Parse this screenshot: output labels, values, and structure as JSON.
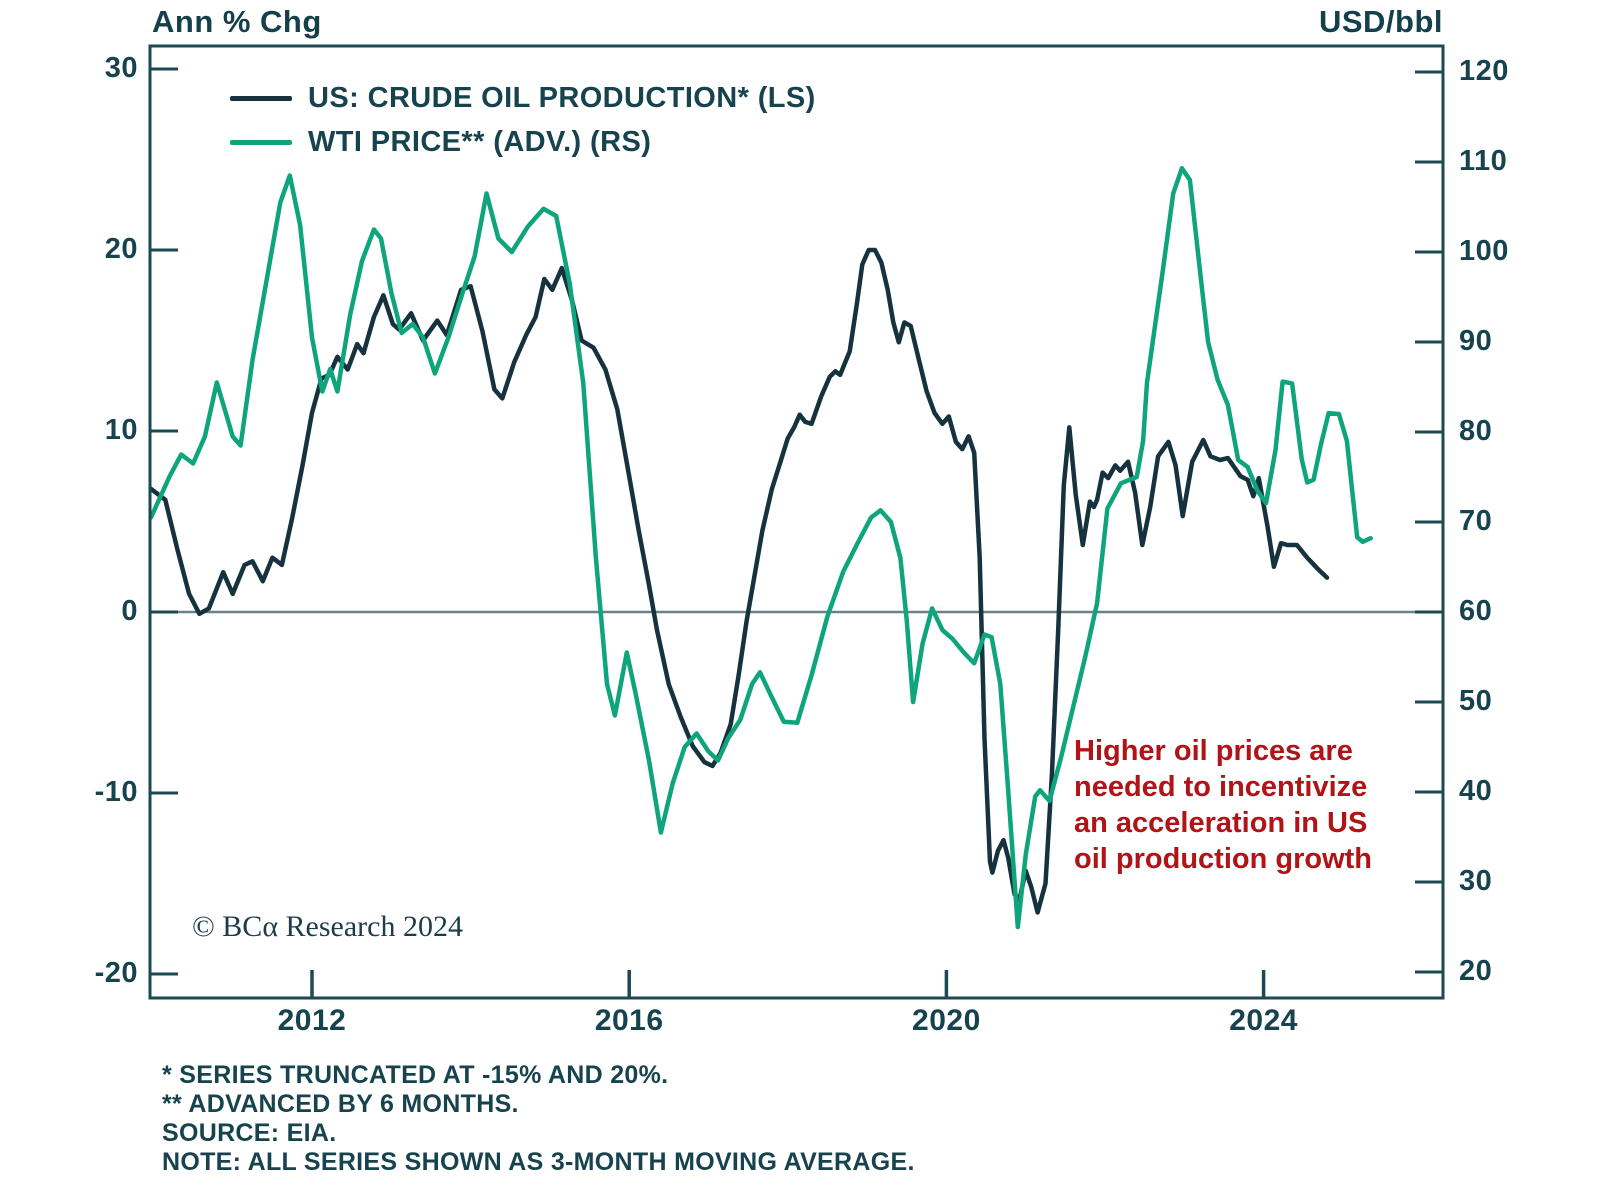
{
  "copyright": "© BCα Research 2024",
  "legend": [
    {
      "label": "US: CRUDE OIL PRODUCTION* (LS)",
      "color": "#16323e"
    },
    {
      "label": "WTI PRICE** (ADV.) (RS)",
      "color": "#0fa57c"
    }
  ],
  "annotation": {
    "text": "Higher oil prices are\nneeded to incentivize\nan acceleration in US\noil production growth",
    "color": "#b11317"
  },
  "footnotes": [
    "* SERIES TRUNCATED AT -15% AND 20%.",
    "** ADVANCED BY 6 MONTHS.",
    "SOURCE: EIA.",
    "NOTE: ALL SERIES SHOWN AS 3-MONTH MOVING AVERAGE."
  ],
  "chart_data": {
    "type": "line",
    "title": "",
    "axis_color": "#1d4953",
    "zero_line_color": "#6b8188",
    "grid": "off",
    "legend_position": "top-left-inside",
    "x_ticks": [
      2012,
      2016,
      2020,
      2024
    ],
    "x_range": [
      2009.95,
      2026.25
    ],
    "left_axis": {
      "title": "Ann % Chg",
      "ticks": [
        30,
        20,
        10,
        0,
        -10,
        -20
      ],
      "range": [
        -21.3,
        31.3
      ]
    },
    "right_axis": {
      "title": "USD/bbl",
      "ticks": [
        120,
        110,
        100,
        90,
        80,
        70,
        60,
        50,
        40,
        30,
        20
      ],
      "range": [
        17.1,
        122.9
      ]
    },
    "zero_line_left_value": 0,
    "series": [
      {
        "name": "US: CRUDE OIL PRODUCTION* (LS)",
        "axis": "left",
        "color": "#16323e",
        "units": "annual % change",
        "points": [
          [
            2009.97,
            6.8
          ],
          [
            2010.15,
            6.2
          ],
          [
            2010.3,
            3.5
          ],
          [
            2010.45,
            1.0
          ],
          [
            2010.58,
            -0.1
          ],
          [
            2010.7,
            0.2
          ],
          [
            2010.88,
            2.2
          ],
          [
            2011.0,
            1.0
          ],
          [
            2011.15,
            2.6
          ],
          [
            2011.25,
            2.8
          ],
          [
            2011.38,
            1.7
          ],
          [
            2011.5,
            3.0
          ],
          [
            2011.62,
            2.6
          ],
          [
            2011.75,
            5.2
          ],
          [
            2011.88,
            8.1
          ],
          [
            2012.0,
            11.0
          ],
          [
            2012.12,
            12.9
          ],
          [
            2012.22,
            13.1
          ],
          [
            2012.32,
            14.1
          ],
          [
            2012.45,
            13.4
          ],
          [
            2012.57,
            14.8
          ],
          [
            2012.65,
            14.3
          ],
          [
            2012.78,
            16.3
          ],
          [
            2012.9,
            17.5
          ],
          [
            2013.02,
            15.9
          ],
          [
            2013.1,
            15.6
          ],
          [
            2013.25,
            16.5
          ],
          [
            2013.4,
            15.0
          ],
          [
            2013.58,
            16.1
          ],
          [
            2013.7,
            15.3
          ],
          [
            2013.88,
            17.8
          ],
          [
            2014.0,
            18.0
          ],
          [
            2014.15,
            15.5
          ],
          [
            2014.3,
            12.3
          ],
          [
            2014.4,
            11.8
          ],
          [
            2014.55,
            13.8
          ],
          [
            2014.7,
            15.3
          ],
          [
            2014.82,
            16.3
          ],
          [
            2014.93,
            18.4
          ],
          [
            2015.03,
            17.8
          ],
          [
            2015.15,
            19.0
          ],
          [
            2015.28,
            17.2
          ],
          [
            2015.4,
            15.0
          ],
          [
            2015.55,
            14.6
          ],
          [
            2015.7,
            13.4
          ],
          [
            2015.85,
            11.2
          ],
          [
            2016.0,
            7.5
          ],
          [
            2016.12,
            4.5
          ],
          [
            2016.25,
            1.5
          ],
          [
            2016.35,
            -1.0
          ],
          [
            2016.5,
            -4.0
          ],
          [
            2016.65,
            -5.8
          ],
          [
            2016.8,
            -7.4
          ],
          [
            2016.95,
            -8.3
          ],
          [
            2017.05,
            -8.5
          ],
          [
            2017.15,
            -7.8
          ],
          [
            2017.28,
            -6.2
          ],
          [
            2017.38,
            -3.5
          ],
          [
            2017.48,
            -0.5
          ],
          [
            2017.58,
            2.0
          ],
          [
            2017.68,
            4.5
          ],
          [
            2017.8,
            6.8
          ],
          [
            2017.9,
            8.2
          ],
          [
            2018.0,
            9.6
          ],
          [
            2018.08,
            10.2
          ],
          [
            2018.15,
            10.9
          ],
          [
            2018.22,
            10.5
          ],
          [
            2018.3,
            10.4
          ],
          [
            2018.42,
            11.9
          ],
          [
            2018.53,
            13.0
          ],
          [
            2018.6,
            13.3
          ],
          [
            2018.66,
            13.1
          ],
          [
            2018.78,
            14.4
          ],
          [
            2018.87,
            17.0
          ],
          [
            2018.94,
            19.2
          ],
          [
            2019.02,
            20.0
          ],
          [
            2019.1,
            20.0
          ],
          [
            2019.18,
            19.3
          ],
          [
            2019.26,
            17.8
          ],
          [
            2019.33,
            16.0
          ],
          [
            2019.4,
            14.9
          ],
          [
            2019.47,
            16.0
          ],
          [
            2019.55,
            15.8
          ],
          [
            2019.65,
            14.0
          ],
          [
            2019.75,
            12.2
          ],
          [
            2019.85,
            11.0
          ],
          [
            2019.95,
            10.4
          ],
          [
            2020.03,
            10.8
          ],
          [
            2020.12,
            9.4
          ],
          [
            2020.2,
            9.0
          ],
          [
            2020.28,
            9.7
          ],
          [
            2020.35,
            8.8
          ],
          [
            2020.42,
            3.0
          ],
          [
            2020.48,
            -7.0
          ],
          [
            2020.55,
            -13.8
          ],
          [
            2020.58,
            -14.4
          ],
          [
            2020.65,
            -13.2
          ],
          [
            2020.72,
            -12.6
          ],
          [
            2020.78,
            -13.6
          ],
          [
            2020.86,
            -15.6
          ],
          [
            2020.92,
            -15.9
          ],
          [
            2021.0,
            -14.3
          ],
          [
            2021.07,
            -15.2
          ],
          [
            2021.15,
            -16.6
          ],
          [
            2021.25,
            -15.0
          ],
          [
            2021.33,
            -9.0
          ],
          [
            2021.41,
            -1.0
          ],
          [
            2021.48,
            7.0
          ],
          [
            2021.55,
            10.2
          ],
          [
            2021.63,
            6.5
          ],
          [
            2021.72,
            3.7
          ],
          [
            2021.81,
            6.1
          ],
          [
            2021.86,
            5.8
          ],
          [
            2021.9,
            6.2
          ],
          [
            2021.97,
            7.7
          ],
          [
            2022.04,
            7.4
          ],
          [
            2022.13,
            8.1
          ],
          [
            2022.19,
            7.8
          ],
          [
            2022.29,
            8.3
          ],
          [
            2022.38,
            6.6
          ],
          [
            2022.47,
            3.7
          ],
          [
            2022.57,
            5.8
          ],
          [
            2022.67,
            8.6
          ],
          [
            2022.8,
            9.4
          ],
          [
            2022.89,
            8.1
          ],
          [
            2022.98,
            5.3
          ],
          [
            2023.1,
            8.3
          ],
          [
            2023.24,
            9.5
          ],
          [
            2023.33,
            8.6
          ],
          [
            2023.45,
            8.4
          ],
          [
            2023.55,
            8.5
          ],
          [
            2023.71,
            7.5
          ],
          [
            2023.8,
            7.3
          ],
          [
            2023.87,
            6.4
          ],
          [
            2023.94,
            7.4
          ],
          [
            2024.05,
            4.7
          ],
          [
            2024.13,
            2.5
          ],
          [
            2024.22,
            3.8
          ],
          [
            2024.3,
            3.7
          ],
          [
            2024.42,
            3.7
          ],
          [
            2024.55,
            3.0
          ],
          [
            2024.68,
            2.4
          ],
          [
            2024.8,
            1.9
          ]
        ]
      },
      {
        "name": "WTI PRICE** (ADV.) (RS)",
        "axis": "right",
        "color": "#0fa57c",
        "units": "USD/bbl",
        "points": [
          [
            2009.97,
            70.5
          ],
          [
            2010.2,
            75.0
          ],
          [
            2010.35,
            77.5
          ],
          [
            2010.5,
            76.5
          ],
          [
            2010.65,
            79.5
          ],
          [
            2010.8,
            85.5
          ],
          [
            2011.0,
            79.5
          ],
          [
            2011.1,
            78.5
          ],
          [
            2011.25,
            88.0
          ],
          [
            2011.45,
            98.0
          ],
          [
            2011.6,
            105.5
          ],
          [
            2011.72,
            108.5
          ],
          [
            2011.85,
            103.0
          ],
          [
            2012.0,
            90.5
          ],
          [
            2012.13,
            84.5
          ],
          [
            2012.23,
            87.0
          ],
          [
            2012.32,
            84.5
          ],
          [
            2012.48,
            93.0
          ],
          [
            2012.63,
            99.0
          ],
          [
            2012.78,
            102.5
          ],
          [
            2012.87,
            101.5
          ],
          [
            2013.0,
            95.5
          ],
          [
            2013.13,
            91.0
          ],
          [
            2013.27,
            92.0
          ],
          [
            2013.4,
            90.5
          ],
          [
            2013.55,
            86.5
          ],
          [
            2013.72,
            90.5
          ],
          [
            2013.9,
            95.5
          ],
          [
            2014.05,
            99.5
          ],
          [
            2014.2,
            106.5
          ],
          [
            2014.35,
            101.5
          ],
          [
            2014.52,
            100.0
          ],
          [
            2014.72,
            102.8
          ],
          [
            2014.92,
            104.8
          ],
          [
            2015.08,
            104.0
          ],
          [
            2015.25,
            96.5
          ],
          [
            2015.42,
            85.5
          ],
          [
            2015.58,
            66.0
          ],
          [
            2015.72,
            52.0
          ],
          [
            2015.82,
            48.5
          ],
          [
            2015.97,
            55.5
          ],
          [
            2016.08,
            51.0
          ],
          [
            2016.25,
            43.5
          ],
          [
            2016.4,
            35.5
          ],
          [
            2016.55,
            41.0
          ],
          [
            2016.7,
            45.0
          ],
          [
            2016.85,
            46.5
          ],
          [
            2017.0,
            44.5
          ],
          [
            2017.12,
            43.5
          ],
          [
            2017.25,
            46.0
          ],
          [
            2017.4,
            48.0
          ],
          [
            2017.55,
            52.0
          ],
          [
            2017.65,
            53.3
          ],
          [
            2017.8,
            50.5
          ],
          [
            2017.95,
            47.8
          ],
          [
            2018.12,
            47.7
          ],
          [
            2018.3,
            53.0
          ],
          [
            2018.5,
            59.5
          ],
          [
            2018.7,
            64.5
          ],
          [
            2018.9,
            68.0
          ],
          [
            2019.05,
            70.5
          ],
          [
            2019.17,
            71.3
          ],
          [
            2019.3,
            70.0
          ],
          [
            2019.42,
            66.0
          ],
          [
            2019.5,
            59.0
          ],
          [
            2019.58,
            50.0
          ],
          [
            2019.7,
            56.5
          ],
          [
            2019.82,
            60.4
          ],
          [
            2019.95,
            58.0
          ],
          [
            2020.08,
            57.0
          ],
          [
            2020.22,
            55.5
          ],
          [
            2020.35,
            54.3
          ],
          [
            2020.48,
            57.5
          ],
          [
            2020.57,
            57.2
          ],
          [
            2020.68,
            52.0
          ],
          [
            2020.78,
            40.0
          ],
          [
            2020.9,
            25.0
          ],
          [
            2021.0,
            33.0
          ],
          [
            2021.12,
            39.5
          ],
          [
            2021.18,
            40.2
          ],
          [
            2021.3,
            39.0
          ],
          [
            2021.45,
            44.0
          ],
          [
            2021.6,
            49.5
          ],
          [
            2021.75,
            55.0
          ],
          [
            2021.9,
            61.0
          ],
          [
            2022.03,
            71.5
          ],
          [
            2022.2,
            74.3
          ],
          [
            2022.4,
            75.0
          ],
          [
            2022.48,
            79.0
          ],
          [
            2022.53,
            85.5
          ],
          [
            2022.73,
            98.0
          ],
          [
            2022.86,
            106.5
          ],
          [
            2022.97,
            109.3
          ],
          [
            2023.07,
            108.0
          ],
          [
            2023.2,
            97.7
          ],
          [
            2023.3,
            90.0
          ],
          [
            2023.42,
            85.8
          ],
          [
            2023.55,
            83.0
          ],
          [
            2023.68,
            76.9
          ],
          [
            2023.8,
            76.1
          ],
          [
            2023.92,
            73.5
          ],
          [
            2024.03,
            72.1
          ],
          [
            2024.15,
            78.0
          ],
          [
            2024.24,
            85.6
          ],
          [
            2024.36,
            85.4
          ],
          [
            2024.48,
            77.0
          ],
          [
            2024.55,
            74.4
          ],
          [
            2024.63,
            74.7
          ],
          [
            2024.72,
            78.5
          ],
          [
            2024.82,
            82.1
          ],
          [
            2024.95,
            82.0
          ],
          [
            2025.05,
            79.0
          ],
          [
            2025.18,
            68.3
          ],
          [
            2025.25,
            67.8
          ],
          [
            2025.35,
            68.2
          ]
        ]
      }
    ]
  }
}
